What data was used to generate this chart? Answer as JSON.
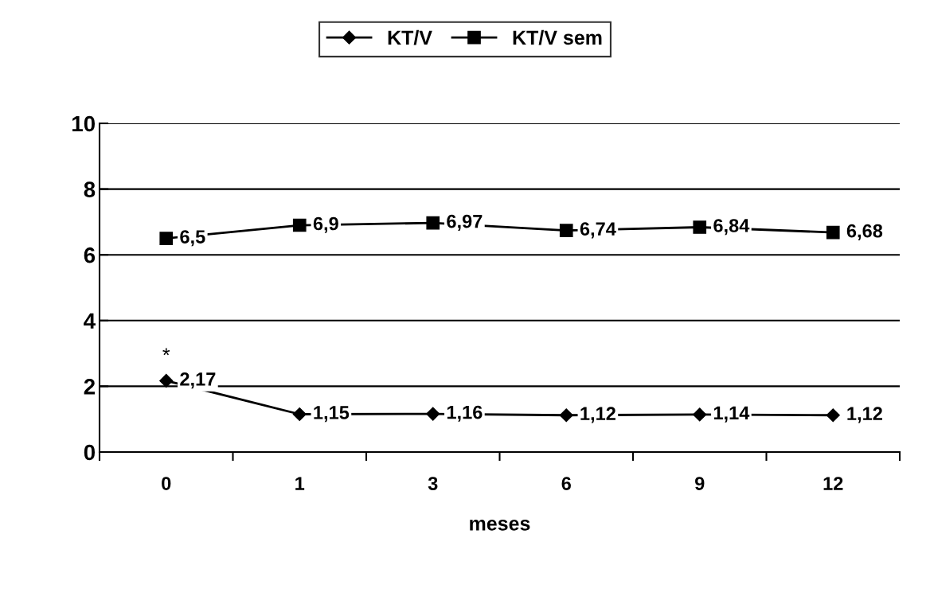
{
  "chart_data": {
    "type": "line",
    "xlabel": "meses",
    "categories": [
      "0",
      "1",
      "3",
      "6",
      "9",
      "12"
    ],
    "series": [
      {
        "name": "KT/V",
        "color": "#000000",
        "marker": "diamond",
        "values": [
          2.17,
          1.15,
          1.16,
          1.12,
          1.14,
          1.12
        ],
        "value_labels": [
          "2,17",
          "1,15",
          "1,16",
          "1,12",
          "1,14",
          "1,12"
        ]
      },
      {
        "name": "KT/V sem",
        "color": "#000000",
        "marker": "square",
        "values": [
          6.5,
          6.9,
          6.97,
          6.74,
          6.84,
          6.68
        ],
        "value_labels": [
          "6,5",
          "6,9",
          "6,97",
          "6,74",
          "6,84",
          "6,68"
        ]
      }
    ],
    "ylim": [
      0,
      10
    ],
    "yticks": [
      0,
      2,
      4,
      6,
      8,
      10
    ],
    "grid": "y",
    "legend": "top",
    "line_style": "solid",
    "annotations": [
      "*"
    ]
  }
}
